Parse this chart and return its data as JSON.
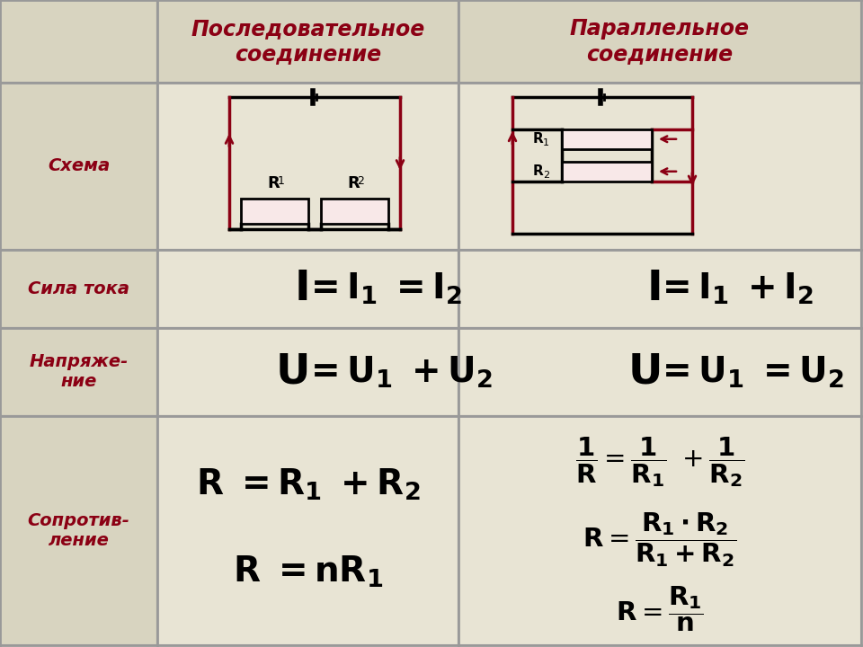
{
  "bg_color": "#eeeadc",
  "header_col_bg": "#d8d4c0",
  "cell_bg": "#e8e4d4",
  "title_color": "#8b0014",
  "text_color": "#000000",
  "grid_color": "#999999",
  "resistor_fill": "#f8e8e8",
  "resistor_edge": "#000000",
  "wire_color": "#000000",
  "arrow_color": "#8b0014",
  "col2_header": "Последовательное\nсоединение",
  "col3_header": "Параллельное\nсоединение",
  "row1_label": "Схема",
  "row2_label": "Сила тока",
  "row3_label": "Напряже-\nние",
  "row4_label": "Сопротив-\nление",
  "col_borders": [
    0,
    175,
    510,
    958
  ],
  "row_borders": [
    0,
    92,
    278,
    365,
    463,
    718
  ]
}
